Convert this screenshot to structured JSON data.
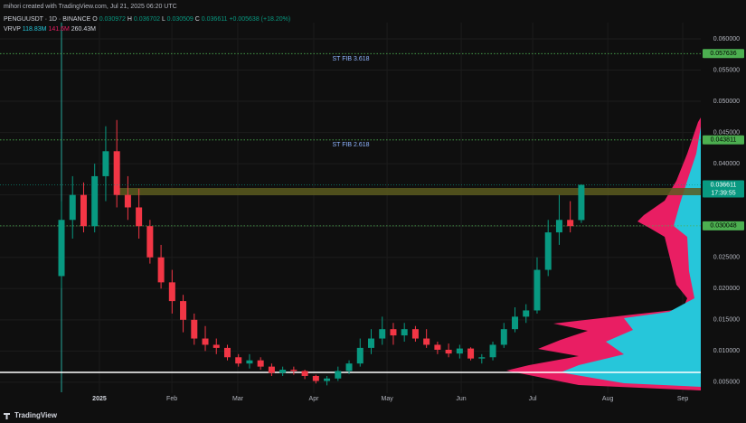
{
  "watermark": "mihori created with TradingView.com, Jul 21, 2025 06:20 UTC",
  "chart_data": {
    "type": "candlestick",
    "title": "PENGUUSDT · 1D · BINANCE",
    "change": "+0.005638 (+18.20%)",
    "indicator": "VRVP",
    "indicator_values": [
      "118.83M",
      "141.6M",
      "260.43M"
    ],
    "ohlc_keys": [
      "O",
      "H",
      "L",
      "C"
    ],
    "up_color": "#089981",
    "down_color": "#f23645",
    "open": [
      0.022,
      0.031,
      0.035,
      0.03,
      0.038,
      0.042,
      0.035,
      0.033,
      0.03,
      0.025,
      0.021,
      0.018,
      0.015,
      0.012,
      0.011,
      0.0105,
      0.009,
      0.008,
      0.0085,
      0.0075,
      0.0065,
      0.007,
      0.0068,
      0.006,
      0.0052,
      0.0056,
      0.0068,
      0.008,
      0.0105,
      0.012,
      0.0135,
      0.0125,
      0.0135,
      0.012,
      0.011,
      0.0102,
      0.0096,
      0.0104,
      0.0088,
      0.009,
      0.011,
      0.0135,
      0.0155,
      0.0165,
      0.023,
      0.029,
      0.031,
      0.030972
    ],
    "high": [
      0.034,
      0.038,
      0.037,
      0.04,
      0.046,
      0.047,
      0.038,
      0.036,
      0.031,
      0.027,
      0.023,
      0.019,
      0.016,
      0.014,
      0.012,
      0.011,
      0.0095,
      0.0095,
      0.009,
      0.008,
      0.0075,
      0.0075,
      0.007,
      0.0062,
      0.006,
      0.0075,
      0.0085,
      0.012,
      0.0135,
      0.0155,
      0.0145,
      0.0145,
      0.014,
      0.0135,
      0.0115,
      0.0112,
      0.011,
      0.0106,
      0.0095,
      0.0115,
      0.0145,
      0.017,
      0.0175,
      0.025,
      0.031,
      0.035,
      0.034,
      0.036702
    ],
    "low": [
      0.02,
      0.028,
      0.029,
      0.029,
      0.034,
      0.033,
      0.031,
      0.028,
      0.024,
      0.02,
      0.016,
      0.013,
      0.011,
      0.01,
      0.0095,
      0.0085,
      0.0075,
      0.0072,
      0.007,
      0.006,
      0.006,
      0.0062,
      0.0055,
      0.0048,
      0.0045,
      0.0052,
      0.0063,
      0.0075,
      0.0095,
      0.011,
      0.011,
      0.0115,
      0.0115,
      0.0105,
      0.0095,
      0.009,
      0.0088,
      0.0085,
      0.008,
      0.0085,
      0.0105,
      0.013,
      0.0145,
      0.016,
      0.022,
      0.027,
      0.029,
      0.030509
    ],
    "close": [
      0.031,
      0.035,
      0.03,
      0.038,
      0.042,
      0.035,
      0.033,
      0.03,
      0.025,
      0.021,
      0.018,
      0.015,
      0.012,
      0.011,
      0.0105,
      0.009,
      0.008,
      0.0085,
      0.0075,
      0.0065,
      0.007,
      0.0068,
      0.006,
      0.0052,
      0.0056,
      0.0068,
      0.008,
      0.0105,
      0.012,
      0.0135,
      0.0125,
      0.0135,
      0.012,
      0.011,
      0.0102,
      0.0096,
      0.0104,
      0.0088,
      0.009,
      0.011,
      0.0135,
      0.0155,
      0.0165,
      0.023,
      0.029,
      0.031,
      0.03,
      0.036611
    ],
    "xlim": [
      -5.56,
      57.8
    ],
    "xticks": [
      {
        "value": 3.43,
        "label": "2025"
      },
      {
        "value": 9.98,
        "label": "Feb"
      },
      {
        "value": 15.94,
        "label": "Mar"
      },
      {
        "value": 22.81,
        "label": "Apr"
      },
      {
        "value": 29.44,
        "label": "May"
      },
      {
        "value": 36.14,
        "label": "Jun"
      },
      {
        "value": 42.6,
        "label": "Jul"
      },
      {
        "value": 49.39,
        "label": "Aug"
      },
      {
        "value": 56.17,
        "label": "Sep"
      }
    ],
    "ylim": [
      0.0018,
      0.0626
    ],
    "yticks": [
      {
        "value": 0.005,
        "label": "0.005000"
      },
      {
        "value": 0.01,
        "label": "0.010000"
      },
      {
        "value": 0.015,
        "label": "0.015000"
      },
      {
        "value": 0.02,
        "label": "0.020000"
      },
      {
        "value": 0.025,
        "label": "0.025000"
      },
      {
        "value": 0.03,
        "label": "0.030000"
      },
      {
        "value": 0.035,
        "label": "0.035000"
      },
      {
        "value": 0.04,
        "label": "0.040000"
      },
      {
        "value": 0.045,
        "label": "0.045000"
      },
      {
        "value": 0.05,
        "label": "0.050000"
      },
      {
        "value": 0.055,
        "label": "0.055000"
      },
      {
        "value": 0.06,
        "label": "0.060000"
      }
    ],
    "levels": [
      0.057636,
      0.043811,
      0.030048
    ],
    "level_color": "#4caf50",
    "last_price": 0.036611,
    "countdown": "17:39:55",
    "annotations": [
      "ST FIB 3.618",
      "ST FIB 2.618"
    ],
    "footer": "TradingView"
  }
}
